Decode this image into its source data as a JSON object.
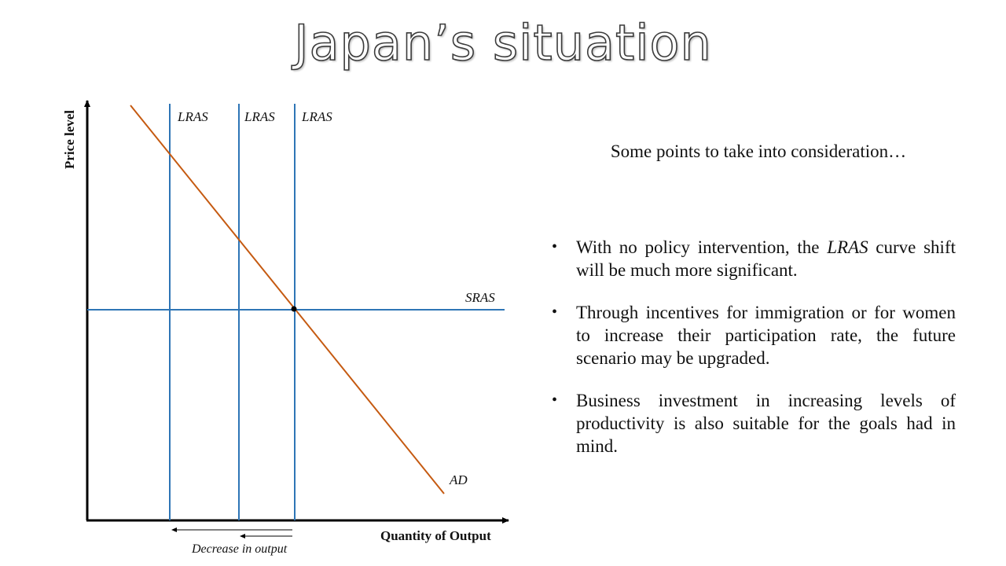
{
  "slide": {
    "title": "Japan’s situation",
    "note": "Some points to take into consideration…",
    "bullets": [
      {
        "before": "With no policy intervention, the ",
        "emph": "LRAS",
        "after": " curve shift will be much more significant."
      },
      {
        "before": "Through incentives for immigration or for women to increase their participation rate, the future scenario may be upgraded.",
        "emph": "",
        "after": ""
      },
      {
        "before": "Business investment in increasing levels of productivity is also suitable for the goals had in mind.",
        "emph": "",
        "after": ""
      }
    ]
  },
  "diagram": {
    "y_axis_label": "Price level",
    "x_axis_label": "Quantity of Output",
    "lras_labels": [
      "LRAS",
      "LRAS",
      "LRAS"
    ],
    "sras_label": "SRAS",
    "ad_label": "AD",
    "shift_caption": "Decrease in output",
    "colors": {
      "supply": "#2e75b6",
      "demand": "#c55a11",
      "axis": "#000000"
    }
  }
}
